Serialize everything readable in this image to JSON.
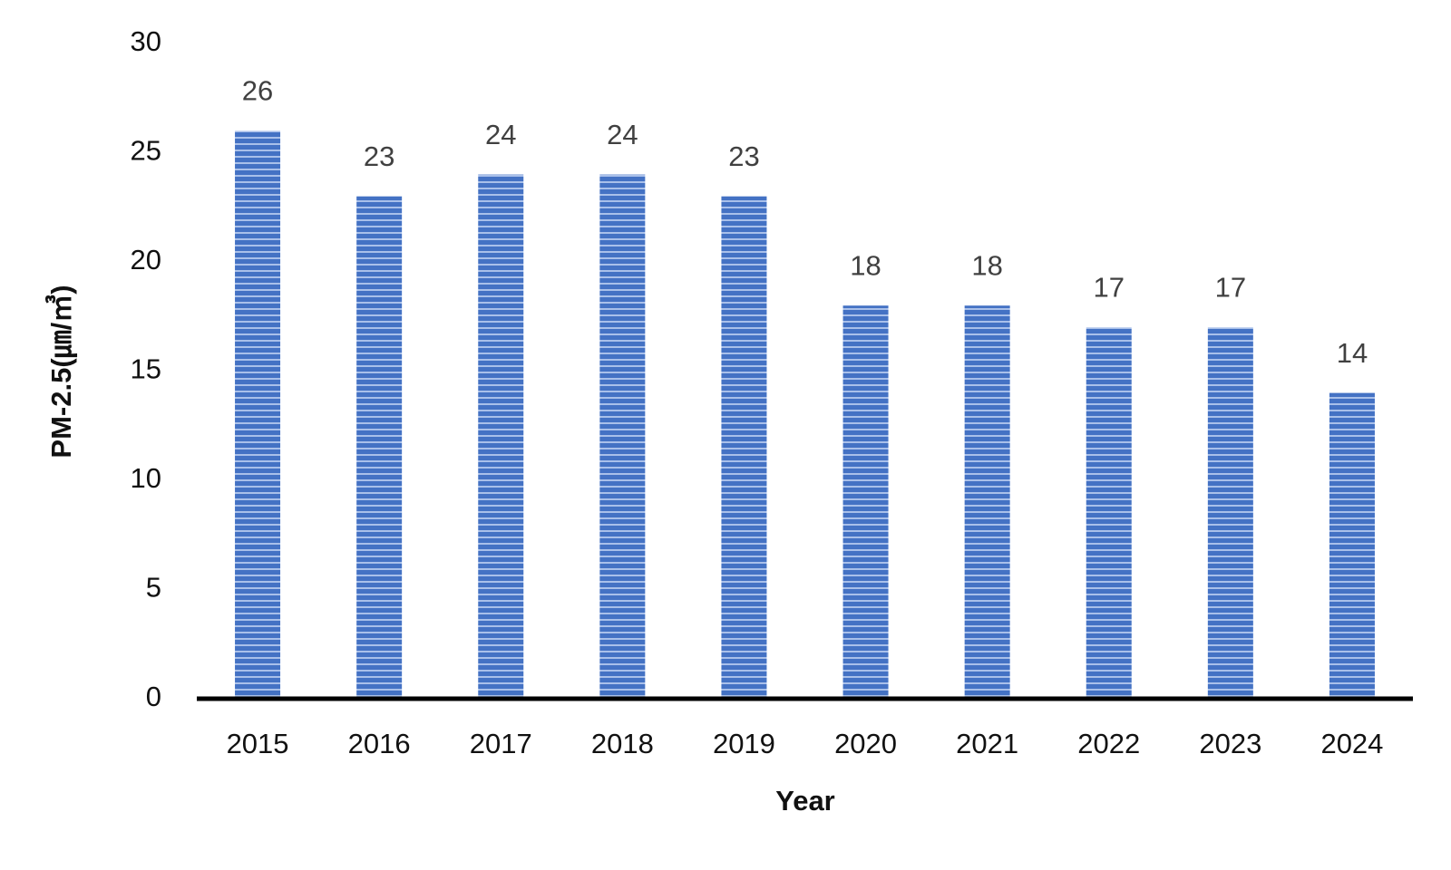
{
  "chart_data": {
    "type": "bar",
    "categories": [
      "2015",
      "2016",
      "2017",
      "2018",
      "2019",
      "2020",
      "2021",
      "2022",
      "2023",
      "2024"
    ],
    "values": [
      26,
      23,
      24,
      24,
      23,
      18,
      18,
      17,
      17,
      14
    ],
    "color": "#4472c4",
    "x_label": "Year",
    "y_label": "PM-2.5(㎛/㎥)",
    "ylim": [
      0,
      30
    ],
    "yticks": [
      0,
      5,
      10,
      15,
      20,
      25,
      30
    ],
    "grid": false
  }
}
